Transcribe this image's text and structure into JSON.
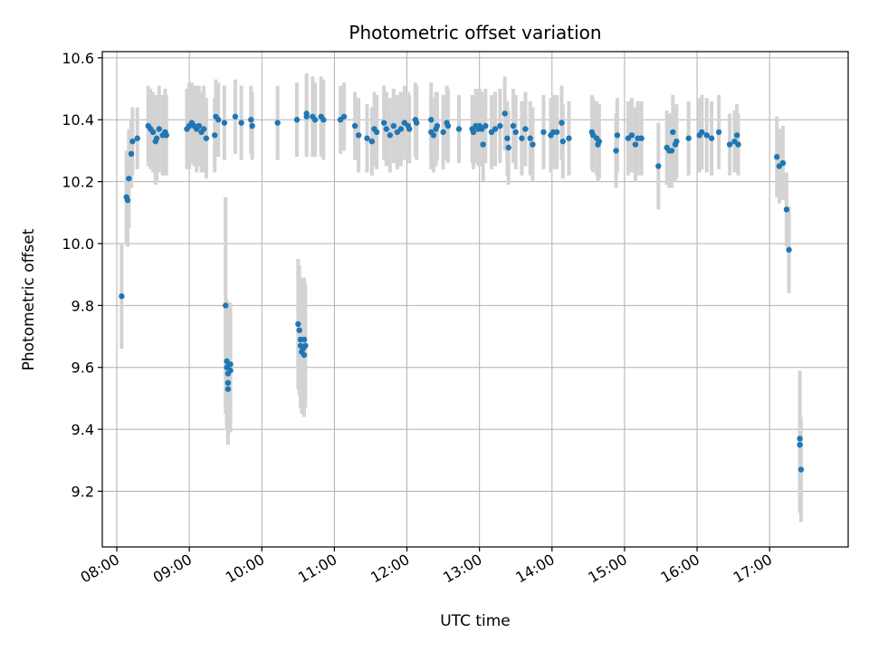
{
  "chart_data": {
    "type": "scatter",
    "title": "Photometric offset variation",
    "xlabel": "UTC time",
    "ylabel": "Photometric offset",
    "xlim": [
      "07:48",
      "18:05"
    ],
    "ylim": [
      9.02,
      10.62
    ],
    "xticks": [
      "08:00",
      "09:00",
      "10:00",
      "11:00",
      "12:00",
      "13:00",
      "14:00",
      "15:00",
      "16:00",
      "17:00"
    ],
    "yticks": [
      "9.2",
      "9.4",
      "9.6",
      "9.8",
      "10.0",
      "10.2",
      "10.4",
      "10.6"
    ],
    "grid": true,
    "colors": {
      "point": "#1f77b4",
      "errorbar": "#d3d3d3"
    },
    "series": [
      {
        "points": [
          [
            "08:04",
            9.83,
            0.17
          ],
          [
            "08:08",
            10.15,
            0.15
          ],
          [
            "08:09",
            10.14,
            0.15
          ],
          [
            "08:10",
            10.21,
            0.16
          ],
          [
            "08:12",
            10.29,
            0.11
          ],
          [
            "08:13",
            10.33,
            0.11
          ],
          [
            "08:17",
            10.34,
            0.1
          ],
          [
            "08:26",
            10.38,
            0.13
          ],
          [
            "08:28",
            10.37,
            0.13
          ],
          [
            "08:30",
            10.36,
            0.13
          ],
          [
            "08:32",
            10.33,
            0.14
          ],
          [
            "08:33",
            10.34,
            0.14
          ],
          [
            "08:35",
            10.37,
            0.14
          ],
          [
            "08:38",
            10.35,
            0.13
          ],
          [
            "08:40",
            10.36,
            0.14
          ],
          [
            "08:41",
            10.35,
            0.13
          ],
          [
            "08:58",
            10.37,
            0.13
          ],
          [
            "09:00",
            10.38,
            0.14
          ],
          [
            "09:02",
            10.39,
            0.13
          ],
          [
            "09:04",
            10.38,
            0.13
          ],
          [
            "09:06",
            10.37,
            0.14
          ],
          [
            "09:08",
            10.38,
            0.13
          ],
          [
            "09:10",
            10.36,
            0.13
          ],
          [
            "09:12",
            10.37,
            0.14
          ],
          [
            "09:14",
            10.34,
            0.13
          ],
          [
            "09:21",
            10.35,
            0.12
          ],
          [
            "09:22",
            10.41,
            0.12
          ],
          [
            "09:24",
            10.4,
            0.12
          ],
          [
            "09:29",
            10.39,
            0.12
          ],
          [
            "09:30",
            9.8,
            0.35
          ],
          [
            "09:31",
            9.62,
            0.2
          ],
          [
            "09:31",
            9.6,
            0.2
          ],
          [
            "09:32",
            9.58,
            0.2
          ],
          [
            "09:32",
            9.55,
            0.2
          ],
          [
            "09:32",
            9.53,
            0.18
          ],
          [
            "09:33",
            9.61,
            0.2
          ],
          [
            "09:34",
            9.61,
            0.2
          ],
          [
            "09:34",
            9.59,
            0.2
          ],
          [
            "09:38",
            10.41,
            0.12
          ],
          [
            "09:43",
            10.39,
            0.12
          ],
          [
            "09:51",
            10.4,
            0.11
          ],
          [
            "09:52",
            10.38,
            0.11
          ],
          [
            "10:13",
            10.39,
            0.12
          ],
          [
            "10:29",
            10.4,
            0.12
          ],
          [
            "10:30",
            9.74,
            0.21
          ],
          [
            "10:31",
            9.72,
            0.21
          ],
          [
            "10:32",
            9.69,
            0.2
          ],
          [
            "10:32",
            9.67,
            0.2
          ],
          [
            "10:33",
            9.65,
            0.2
          ],
          [
            "10:34",
            9.66,
            0.2
          ],
          [
            "10:35",
            9.64,
            0.2
          ],
          [
            "10:35",
            9.69,
            0.2
          ],
          [
            "10:36",
            9.67,
            0.2
          ],
          [
            "10:37",
            10.41,
            0.13
          ],
          [
            "10:37",
            10.42,
            0.13
          ],
          [
            "10:42",
            10.41,
            0.13
          ],
          [
            "10:44",
            10.4,
            0.12
          ],
          [
            "10:49",
            10.41,
            0.13
          ],
          [
            "10:51",
            10.4,
            0.13
          ],
          [
            "11:05",
            10.4,
            0.11
          ],
          [
            "11:08",
            10.41,
            0.11
          ],
          [
            "11:17",
            10.38,
            0.11
          ],
          [
            "11:20",
            10.35,
            0.12
          ],
          [
            "11:27",
            10.34,
            0.11
          ],
          [
            "11:31",
            10.33,
            0.11
          ],
          [
            "11:33",
            10.37,
            0.12
          ],
          [
            "11:35",
            10.36,
            0.12
          ],
          [
            "11:41",
            10.39,
            0.12
          ],
          [
            "11:43",
            10.37,
            0.12
          ],
          [
            "11:46",
            10.35,
            0.12
          ],
          [
            "11:49",
            10.38,
            0.12
          ],
          [
            "11:52",
            10.36,
            0.12
          ],
          [
            "11:55",
            10.37,
            0.12
          ],
          [
            "11:58",
            10.39,
            0.12
          ],
          [
            "12:01",
            10.38,
            0.11
          ],
          [
            "12:02",
            10.37,
            0.11
          ],
          [
            "12:07",
            10.4,
            0.12
          ],
          [
            "12:08",
            10.39,
            0.12
          ],
          [
            "12:20",
            10.36,
            0.12
          ],
          [
            "12:20",
            10.4,
            0.12
          ],
          [
            "12:22",
            10.35,
            0.12
          ],
          [
            "12:24",
            10.37,
            0.12
          ],
          [
            "12:25",
            10.38,
            0.11
          ],
          [
            "12:30",
            10.36,
            0.12
          ],
          [
            "12:33",
            10.39,
            0.12
          ],
          [
            "12:34",
            10.38,
            0.12
          ],
          [
            "12:43",
            10.37,
            0.11
          ],
          [
            "12:54",
            10.37,
            0.11
          ],
          [
            "12:55",
            10.36,
            0.12
          ],
          [
            "12:57",
            10.38,
            0.12
          ],
          [
            "12:59",
            10.37,
            0.12
          ],
          [
            "13:00",
            10.38,
            0.12
          ],
          [
            "13:02",
            10.37,
            0.12
          ],
          [
            "13:03",
            10.32,
            0.12
          ],
          [
            "13:05",
            10.38,
            0.12
          ],
          [
            "13:10",
            10.36,
            0.12
          ],
          [
            "13:13",
            10.37,
            0.12
          ],
          [
            "13:17",
            10.38,
            0.12
          ],
          [
            "13:21",
            10.42,
            0.12
          ],
          [
            "13:23",
            10.34,
            0.12
          ],
          [
            "13:24",
            10.31,
            0.12
          ],
          [
            "13:28",
            10.38,
            0.12
          ],
          [
            "13:30",
            10.36,
            0.12
          ],
          [
            "13:35",
            10.34,
            0.12
          ],
          [
            "13:38",
            10.37,
            0.12
          ],
          [
            "13:42",
            10.34,
            0.12
          ],
          [
            "13:44",
            10.32,
            0.12
          ],
          [
            "13:53",
            10.36,
            0.12
          ],
          [
            "13:59",
            10.35,
            0.12
          ],
          [
            "14:01",
            10.36,
            0.12
          ],
          [
            "14:04",
            10.36,
            0.12
          ],
          [
            "14:08",
            10.39,
            0.12
          ],
          [
            "14:09",
            10.33,
            0.12
          ],
          [
            "14:14",
            10.34,
            0.12
          ],
          [
            "14:33",
            10.36,
            0.12
          ],
          [
            "14:34",
            10.35,
            0.12
          ],
          [
            "14:37",
            10.34,
            0.12
          ],
          [
            "14:38",
            10.32,
            0.12
          ],
          [
            "14:39",
            10.33,
            0.12
          ],
          [
            "14:53",
            10.3,
            0.12
          ],
          [
            "14:54",
            10.35,
            0.12
          ],
          [
            "15:03",
            10.34,
            0.12
          ],
          [
            "15:06",
            10.35,
            0.12
          ],
          [
            "15:09",
            10.32,
            0.12
          ],
          [
            "15:11",
            10.34,
            0.12
          ],
          [
            "15:14",
            10.34,
            0.12
          ],
          [
            "15:28",
            10.25,
            0.14
          ],
          [
            "15:35",
            10.31,
            0.12
          ],
          [
            "15:37",
            10.3,
            0.12
          ],
          [
            "15:39",
            10.3,
            0.12
          ],
          [
            "15:40",
            10.36,
            0.12
          ],
          [
            "15:42",
            10.32,
            0.12
          ],
          [
            "15:43",
            10.33,
            0.12
          ],
          [
            "15:53",
            10.34,
            0.12
          ],
          [
            "16:02",
            10.35,
            0.12
          ],
          [
            "16:04",
            10.36,
            0.12
          ],
          [
            "16:08",
            10.35,
            0.12
          ],
          [
            "16:12",
            10.34,
            0.12
          ],
          [
            "16:18",
            10.36,
            0.12
          ],
          [
            "16:27",
            10.32,
            0.1
          ],
          [
            "16:31",
            10.33,
            0.1
          ],
          [
            "16:33",
            10.35,
            0.1
          ],
          [
            "16:34",
            10.32,
            0.1
          ],
          [
            "17:06",
            10.28,
            0.13
          ],
          [
            "17:08",
            10.25,
            0.12
          ],
          [
            "17:11",
            10.26,
            0.12
          ],
          [
            "17:14",
            10.11,
            0.12
          ],
          [
            "17:16",
            9.98,
            0.14
          ],
          [
            "17:25",
            9.37,
            0.22
          ],
          [
            "17:25",
            9.35,
            0.22
          ],
          [
            "17:26",
            9.27,
            0.17
          ]
        ]
      }
    ]
  }
}
